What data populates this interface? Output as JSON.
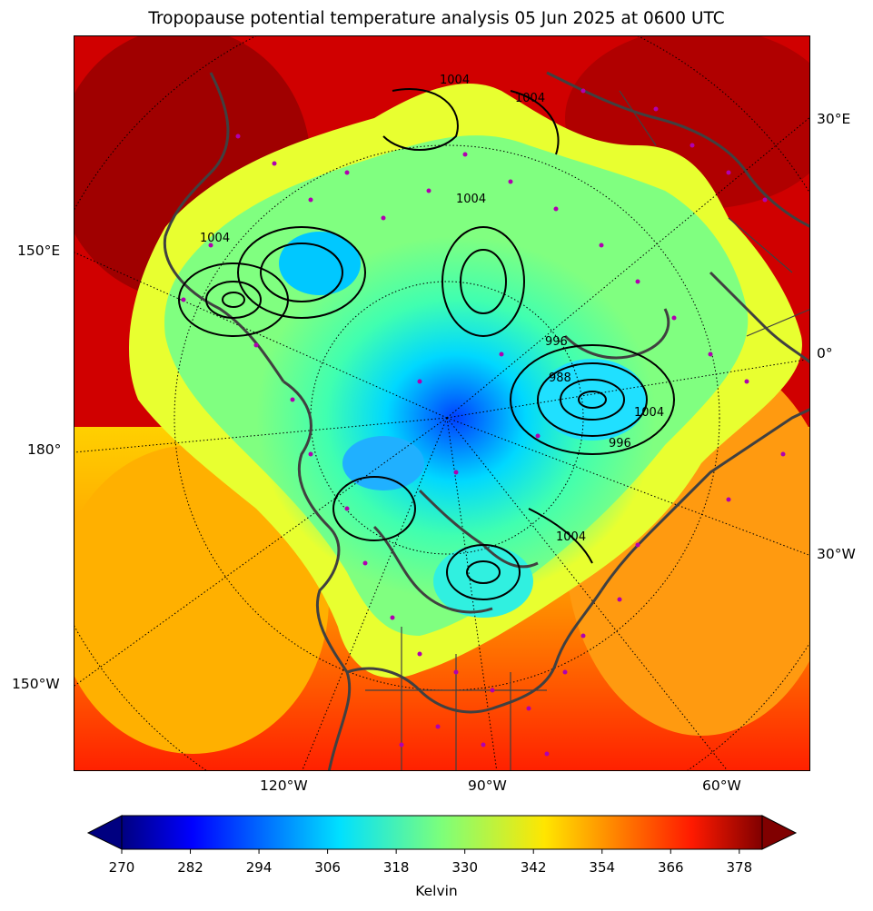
{
  "title": "Tropopause potential temperature analysis 05 Jun 2025 at 0600 UTC",
  "map": {
    "projection": "north-polar-stereographic",
    "field": "tropopause potential temperature",
    "contour_overlay": "mean sea level pressure isobars (hPa)",
    "isobar_labels": [
      "1004",
      "1004",
      "1004",
      "1004",
      "996",
      "988",
      "996",
      "1004",
      "1004"
    ],
    "station_marker_color": "#b000b0",
    "coastline_color": "#404040",
    "lon_labels": {
      "top_right": "30°E",
      "right_upper": "0°",
      "right_lower": "30°W",
      "left_upper": "150°E",
      "left_middle": "180°",
      "left_lower": "150°W",
      "bottom_left": "120°W",
      "bottom_middle": "90°W",
      "bottom_right": "60°W"
    }
  },
  "colorbar": {
    "label": "Kelvin",
    "colormap": "jet",
    "min": 270,
    "max": 382,
    "extend": "both",
    "ticks": [
      "270",
      "282",
      "294",
      "306",
      "318",
      "330",
      "342",
      "354",
      "366",
      "378"
    ]
  }
}
